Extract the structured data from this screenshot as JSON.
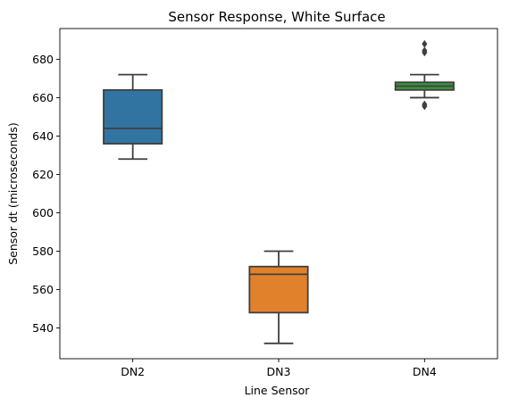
{
  "chart_data": {
    "type": "box",
    "title": "Sensor Response, White Surface",
    "xlabel": "Line Sensor",
    "ylabel": "Sensor dt (microseconds)",
    "categories": [
      "DN2",
      "DN3",
      "DN4"
    ],
    "ylim": [
      524,
      696
    ],
    "yticks": [
      540,
      560,
      580,
      600,
      620,
      640,
      660,
      680
    ],
    "grid": false,
    "boxes": [
      {
        "name": "DN2",
        "whisker_low": 628,
        "q1": 636,
        "median": 644,
        "q3": 664,
        "whisker_high": 672,
        "outliers": [],
        "color": "#3274a1"
      },
      {
        "name": "DN3",
        "whisker_low": 532,
        "q1": 548,
        "median": 568,
        "q3": 572,
        "whisker_high": 580,
        "outliers": [],
        "color": "#e1812c"
      },
      {
        "name": "DN4",
        "whisker_low": 660,
        "q1": 664,
        "median": 666,
        "q3": 668,
        "whisker_high": 672,
        "outliers": [
          655.5,
          656.5,
          683.5,
          684.5,
          688
        ],
        "color": "#3a923a"
      }
    ]
  }
}
